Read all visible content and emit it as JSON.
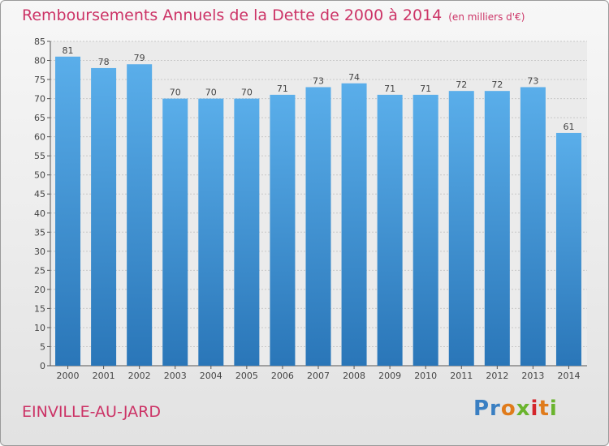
{
  "chart_data": {
    "type": "bar",
    "title": "Remboursements Annuels de la Dette de 2000 à 2014",
    "subtitle": "(en milliers d'€)",
    "categories": [
      "2000",
      "2001",
      "2002",
      "2003",
      "2004",
      "2005",
      "2006",
      "2007",
      "2008",
      "2009",
      "2010",
      "2011",
      "2012",
      "2013",
      "2014"
    ],
    "values": [
      81,
      78,
      79,
      70,
      70,
      70,
      71,
      73,
      74,
      71,
      71,
      72,
      72,
      73,
      61
    ],
    "ylim": [
      0,
      85
    ],
    "yticks": [
      0,
      5,
      10,
      15,
      20,
      25,
      30,
      35,
      40,
      45,
      50,
      55,
      60,
      65,
      70,
      75,
      80,
      85
    ],
    "xlabel": "",
    "ylabel": "",
    "grid": true
  },
  "footer": {
    "commune": "EINVILLE-AU-JARD",
    "brand": "Proxiti"
  },
  "colors": {
    "bar_top": "#5aaeea",
    "bar_bottom": "#2a76b8",
    "title": "#cc3366"
  }
}
